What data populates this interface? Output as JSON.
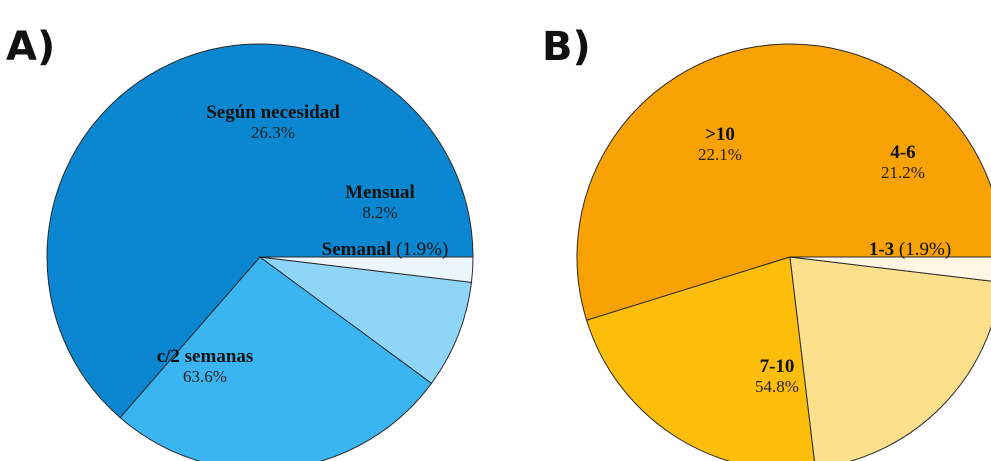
{
  "chart_data": [
    {
      "type": "pie",
      "panel": "A)",
      "slices": [
        {
          "label": "c/2 semanas",
          "pct_text": "63.6%",
          "value": 63.6,
          "color": "#0a87d0",
          "label_mode": "stacked"
        },
        {
          "label": "Según necesidad",
          "pct_text": "26.3%",
          "value": 26.3,
          "color": "#3ab5f2",
          "label_mode": "stacked"
        },
        {
          "label": "Mensual",
          "pct_text": "8.2%",
          "value": 8.2,
          "color": "#8fd5f8",
          "label_mode": "stacked"
        },
        {
          "label": "Semanal",
          "pct_text": "(1.9%)",
          "value": 1.9,
          "color": "#ecf7fd",
          "label_mode": "inline"
        }
      ]
    },
    {
      "type": "pie",
      "panel": "B)",
      "slices": [
        {
          "label": "7-10",
          "pct_text": "54.8%",
          "value": 54.8,
          "color": "#f8a203",
          "label_mode": "stacked"
        },
        {
          "label": ">10",
          "pct_text": "22.1%",
          "value": 22.1,
          "color": "#fcbe0b",
          "label_mode": "stacked"
        },
        {
          "label": "4-6",
          "pct_text": "21.2%",
          "value": 21.2,
          "color": "#fde08c",
          "label_mode": "stacked"
        },
        {
          "label": "1-3",
          "pct_text": "(1.9%)",
          "value": 1.9,
          "color": "#fdf7e3",
          "label_mode": "inline"
        }
      ]
    }
  ]
}
